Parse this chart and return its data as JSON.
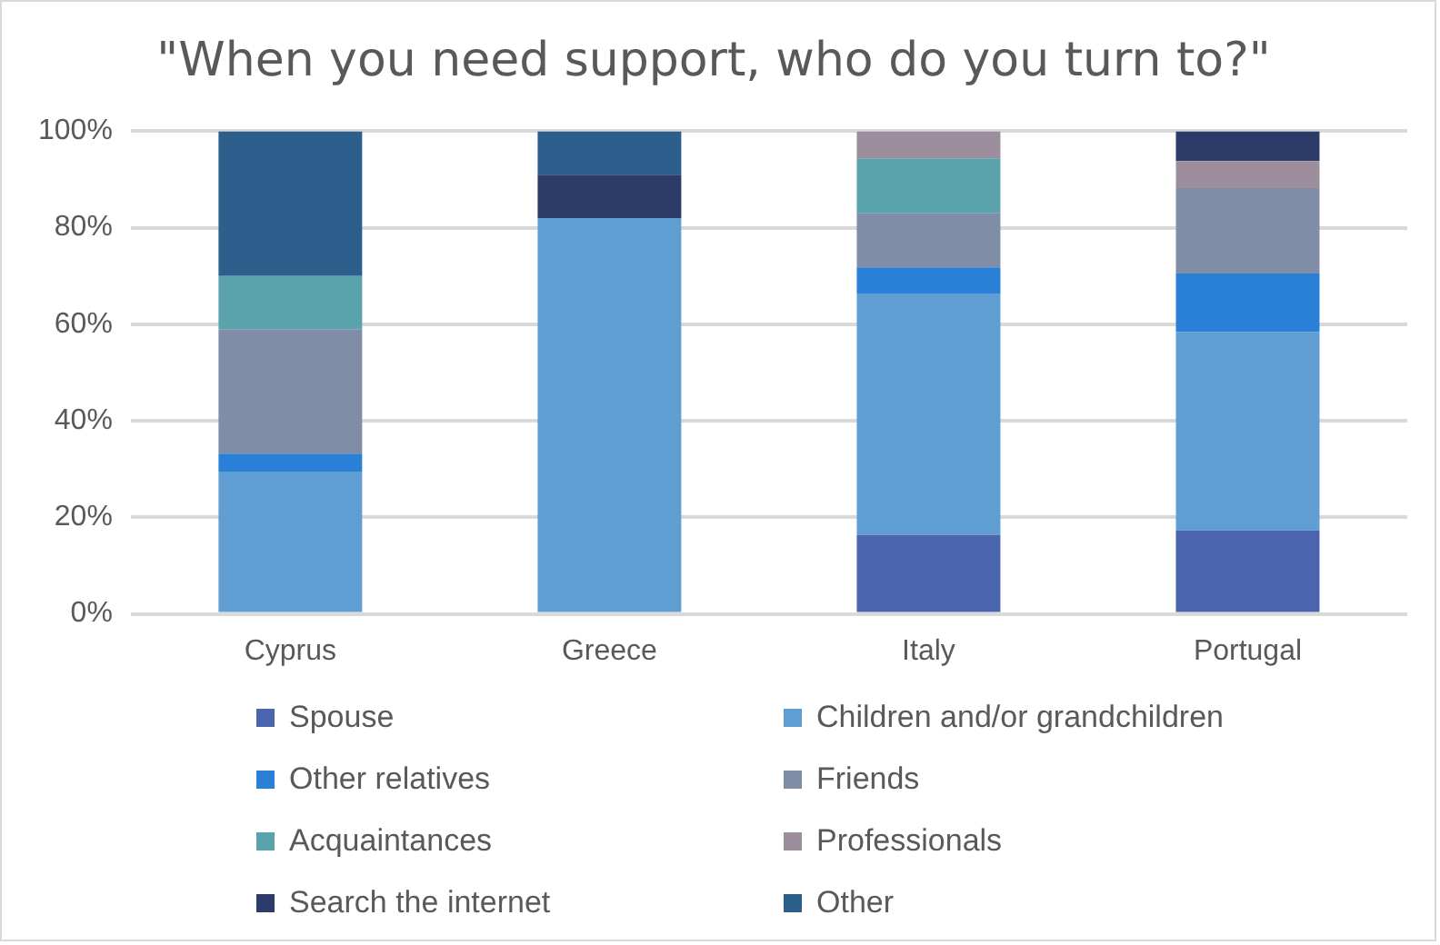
{
  "chart_data": {
    "type": "bar",
    "title": "\"When you need support, who do you turn to?\"",
    "stacked": true,
    "categories": [
      "Cyprus",
      "Greece",
      "Italy",
      "Portugal"
    ],
    "series": [
      {
        "name": "Spouse",
        "color": "#4a65ad",
        "values": [
          0,
          0,
          16.4,
          17.3
        ]
      },
      {
        "name": "Children and/or grandchildren",
        "color": "#609dd2",
        "values": [
          29.5,
          82,
          50,
          41.1
        ]
      },
      {
        "name": "Other relatives",
        "color": "#2a7fd6",
        "values": [
          3.7,
          0,
          5.4,
          12.1
        ]
      },
      {
        "name": "Friends",
        "color": "#7f8da6",
        "values": [
          25.8,
          0,
          11.2,
          17.7
        ]
      },
      {
        "name": "Acquaintances",
        "color": "#5aa2ac",
        "values": [
          11,
          0,
          11.4,
          0
        ]
      },
      {
        "name": "Professionals",
        "color": "#9c8e9d",
        "values": [
          0,
          0,
          5.6,
          5.6
        ]
      },
      {
        "name": "Search the internet",
        "color": "#2c3b67",
        "values": [
          0,
          9,
          0,
          6.2
        ]
      },
      {
        "name": "Other",
        "color": "#2c5f8c",
        "values": [
          30,
          9,
          0,
          0
        ]
      }
    ],
    "ylim": [
      0,
      100
    ],
    "yticks": [
      {
        "value": 0,
        "label": "0%"
      },
      {
        "value": 20,
        "label": "20%"
      },
      {
        "value": 40,
        "label": "40%"
      },
      {
        "value": 60,
        "label": "60%"
      },
      {
        "value": 80,
        "label": "80%"
      },
      {
        "value": 100,
        "label": "100%"
      }
    ],
    "grid": "y",
    "legend": "bottom"
  }
}
